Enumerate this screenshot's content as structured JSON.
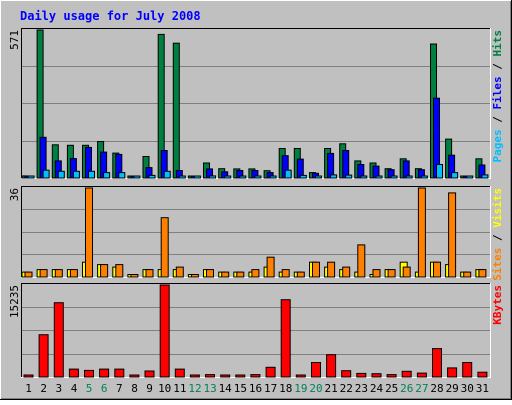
{
  "chart_data": {
    "type": "bar",
    "title": "Daily usage for July 2008",
    "categories": [
      "1",
      "2",
      "3",
      "4",
      "5",
      "6",
      "7",
      "8",
      "9",
      "10",
      "11",
      "12",
      "13",
      "14",
      "15",
      "16",
      "17",
      "18",
      "19",
      "20",
      "21",
      "22",
      "23",
      "24",
      "25",
      "26",
      "27",
      "28",
      "29",
      "30",
      "31"
    ],
    "weekend_days": [
      "5",
      "6",
      "12",
      "13",
      "19",
      "20",
      "26",
      "27"
    ],
    "panels": [
      {
        "id": "hits",
        "ylim": [
          0,
          571
        ],
        "max_label": "571",
        "right_label_parts": [
          {
            "text": "Pages",
            "color": "#00c0ff"
          },
          {
            "text": " / ",
            "color": "#000000"
          },
          {
            "text": "Files",
            "color": "#0000ff"
          },
          {
            "text": " / ",
            "color": "#000000"
          },
          {
            "text": "Hits",
            "color": "#008040"
          }
        ],
        "series": [
          {
            "name": "Hits",
            "color": "#008040",
            "values": [
              8,
              571,
              128,
              126,
              126,
              141,
              96,
              5,
              83,
              554,
              520,
              5,
              58,
              36,
              35,
              35,
              28,
              114,
              114,
              21,
              114,
              132,
              66,
              58,
              36,
              74,
              36,
              517,
              150,
              5,
              74
            ]
          },
          {
            "name": "Files",
            "color": "#0000ff",
            "values": [
              5,
              157,
              66,
              75,
              118,
              100,
              91,
              3,
              40,
              106,
              29,
              3,
              35,
              24,
              29,
              29,
              21,
              86,
              73,
              18,
              95,
              106,
              52,
              46,
              32,
              66,
              32,
              308,
              88,
              4,
              50
            ]
          },
          {
            "name": "Pages",
            "color": "#00c0ff",
            "values": [
              3,
              30,
              26,
              26,
              26,
              21,
              21,
              2,
              10,
              26,
              5,
              2,
              8,
              5,
              7,
              7,
              4,
              30,
              10,
              2,
              12,
              11,
              7,
              6,
              5,
              7,
              4,
              52,
              21,
              1,
              12
            ]
          }
        ]
      },
      {
        "id": "visits",
        "ylim": [
          0,
          36
        ],
        "max_label": "36",
        "right_label_parts": [
          {
            "text": "Sites",
            "color": "#ff8000"
          },
          {
            "text": " / ",
            "color": "#000000"
          },
          {
            "text": "Visits",
            "color": "#ffff00"
          }
        ],
        "series": [
          {
            "name": "Visits",
            "color": "#ffff00",
            "values": [
              2,
              3,
              3,
              3,
              6,
              5,
              4,
              1,
              3,
              3,
              3,
              1,
              3,
              2,
              2,
              2,
              4,
              2,
              2,
              6,
              4,
              3,
              2,
              1,
              3,
              6,
              2,
              6,
              5,
              2,
              3
            ]
          },
          {
            "name": "Sites",
            "color": "#ff8000",
            "values": [
              2,
              3,
              3,
              3,
              36,
              5,
              5,
              1,
              3,
              24,
              4,
              1,
              3,
              2,
              2,
              3,
              8,
              3,
              2,
              6,
              6,
              4,
              13,
              3,
              3,
              4,
              36,
              6,
              34,
              2,
              3
            ]
          }
        ]
      },
      {
        "id": "kbytes",
        "ylim": [
          0,
          15235
        ],
        "max_label": "15235",
        "right_label_parts": [
          {
            "text": "KBytes",
            "color": "#ff0000"
          }
        ],
        "series": [
          {
            "name": "KBytes",
            "color": "#ff0000",
            "values": [
              150,
              7000,
              12300,
              1300,
              1100,
              1300,
              1300,
              150,
              1000,
              15235,
              1300,
              200,
              400,
              250,
              200,
              400,
              1600,
              12800,
              300,
              2400,
              3700,
              1050,
              600,
              550,
              400,
              950,
              650,
              4700,
              1500,
              2400,
              800
            ]
          }
        ]
      }
    ],
    "colors": {
      "background": "#c0c0c0",
      "title_text": "#0000ff",
      "axis_text": "#000000",
      "weekend_text": "#00805c",
      "gridline": "#808080"
    }
  }
}
